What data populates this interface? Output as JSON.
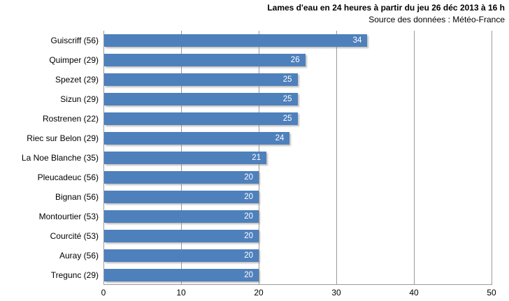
{
  "header": {
    "title": "Lames d'eau en 24 heures à partir du jeu 26 déc 2013 à 16 h",
    "subtitle": "Source des données : Météo-France"
  },
  "chart_data": {
    "type": "bar",
    "orientation": "horizontal",
    "title": "Lames d'eau en 24 heures à partir du jeu 26 déc 2013 à 16 h",
    "subtitle": "Source des données : Météo-France",
    "categories": [
      "Guiscriff (56)",
      "Quimper (29)",
      "Spezet (29)",
      "Sizun (29)",
      "Rostrenen (22)",
      "Riec sur Belon (29)",
      "La Noe Blanche (35)",
      "Pleucadeuc (56)",
      "Bignan (56)",
      "Montourtier (53)",
      "Courcité (53)",
      "Auray (56)",
      "Tregunc (29)"
    ],
    "values": [
      34,
      26,
      25,
      25,
      25,
      24,
      21,
      20,
      20,
      20,
      20,
      20,
      20
    ],
    "xlabel": "",
    "ylabel": "",
    "xlim": [
      0,
      50
    ],
    "xticks": [
      0,
      10,
      20,
      30,
      40,
      50
    ],
    "grid": "vertical",
    "legend": "none",
    "data_labels": "inside-end",
    "colors": {
      "bar": "#4e80bc",
      "gridline": "#9a9a9a",
      "axis": "#9a9a9a",
      "label_text": "#000000",
      "value_text": "#ffffff",
      "background": "#ffffff"
    }
  }
}
